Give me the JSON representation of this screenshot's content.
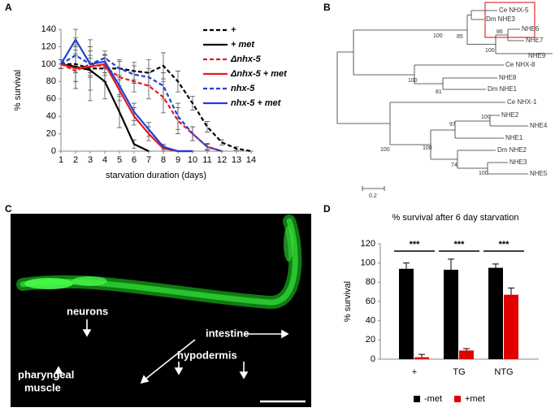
{
  "panel_labels": [
    "A",
    "B",
    "C",
    "D"
  ],
  "chart_data": [
    {
      "type": "line",
      "xlabel": "starvation duration (days)",
      "ylabel": "% survival",
      "x": [
        1,
        2,
        3,
        4,
        5,
        6,
        7,
        8,
        9,
        10,
        11,
        12,
        13,
        14
      ],
      "xlim": [
        1,
        14
      ],
      "xticks": [
        1,
        2,
        3,
        4,
        5,
        6,
        7,
        8,
        9,
        10,
        11,
        12,
        13,
        14
      ],
      "ylim": [
        0,
        140
      ],
      "yticks": [
        0,
        20,
        40,
        60,
        80,
        100,
        120,
        140
      ],
      "series": [
        {
          "name": "+",
          "color": "#000000",
          "dash": true,
          "values": [
            100,
            100,
            95,
            95,
            95,
            92,
            90,
            98,
            80,
            55,
            28,
            10,
            3,
            0
          ],
          "errors": [
            5,
            20,
            25,
            15,
            10,
            10,
            15,
            15,
            12,
            8,
            6,
            3,
            2,
            0
          ]
        },
        {
          "name": "+ met",
          "color": "#000000",
          "dash": false,
          "values": [
            100,
            97,
            93,
            80,
            45,
            8,
            0,
            null,
            null,
            null,
            null,
            null,
            null,
            null
          ],
          "errors": [
            5,
            25,
            35,
            20,
            18,
            5,
            0,
            null,
            null,
            null,
            null,
            null,
            null,
            null
          ]
        },
        {
          "name": "Δnhx-5",
          "color": "#e41a1c",
          "dash": true,
          "values": [
            100,
            92,
            100,
            97,
            85,
            80,
            75,
            62,
            35,
            20,
            5,
            0,
            null,
            null
          ],
          "errors": [
            5,
            20,
            15,
            10,
            10,
            12,
            15,
            18,
            15,
            8,
            4,
            0,
            null,
            null
          ]
        },
        {
          "name": "Δnhx-5 + met",
          "color": "#e41a1c",
          "dash": false,
          "values": [
            100,
            95,
            97,
            100,
            70,
            40,
            20,
            3,
            0,
            0,
            null,
            null,
            null,
            null
          ],
          "errors": [
            5,
            15,
            10,
            10,
            12,
            10,
            8,
            3,
            0,
            0,
            null,
            null,
            null,
            null
          ]
        },
        {
          "name": "nhx-5",
          "color": "#1f3fd6",
          "dash": true,
          "values": [
            100,
            110,
            100,
            107,
            95,
            88,
            85,
            75,
            40,
            20,
            5,
            0,
            null,
            null
          ],
          "errors": [
            5,
            20,
            15,
            8,
            8,
            10,
            10,
            15,
            15,
            8,
            3,
            0,
            null,
            null
          ]
        },
        {
          "name": "nhx-5 + met",
          "color": "#1f3fd6",
          "dash": false,
          "values": [
            100,
            128,
            100,
            103,
            75,
            45,
            25,
            5,
            0,
            0,
            null,
            null,
            null,
            null
          ],
          "errors": [
            5,
            12,
            10,
            8,
            10,
            10,
            8,
            3,
            0,
            0,
            null,
            null,
            null,
            null
          ]
        }
      ]
    },
    {
      "type": "bar",
      "title": "% survival after 6 day starvation",
      "ylabel": "% survival",
      "categories": [
        "+",
        "TG",
        "NTG"
      ],
      "ylim": [
        0,
        120
      ],
      "yticks": [
        0,
        20,
        40,
        60,
        80,
        100,
        120
      ],
      "annotations": [
        "***",
        "***",
        "***"
      ],
      "series": [
        {
          "name": "-met",
          "color": "#000000",
          "values": [
            94,
            93,
            95
          ],
          "errors": [
            6,
            11,
            4
          ]
        },
        {
          "name": "+met",
          "color": "#e00000",
          "values": [
            2,
            9,
            67
          ],
          "errors": [
            3,
            2,
            7
          ]
        }
      ]
    }
  ],
  "tree": {
    "leaves": [
      "Ce NHX-5",
      "Dm NHE3",
      "NHE6",
      "NHE7",
      "NHE9",
      "Ce NHX-8",
      "NHE8",
      "Dm NHE1",
      "Ce NHX-1",
      "NHE2",
      "NHE4",
      "NHE1",
      "Dm NHE2",
      "NHE3",
      "NHE5"
    ],
    "bootstrap": [
      "100",
      "86",
      "100",
      "85",
      "81",
      "100",
      "100",
      "97",
      "100",
      "74",
      "100",
      "100"
    ],
    "scale": "0.2"
  },
  "micrograph": {
    "labels": [
      "intestine",
      "neurons",
      "hypodermis",
      "pharyngeal",
      "muscle"
    ]
  }
}
